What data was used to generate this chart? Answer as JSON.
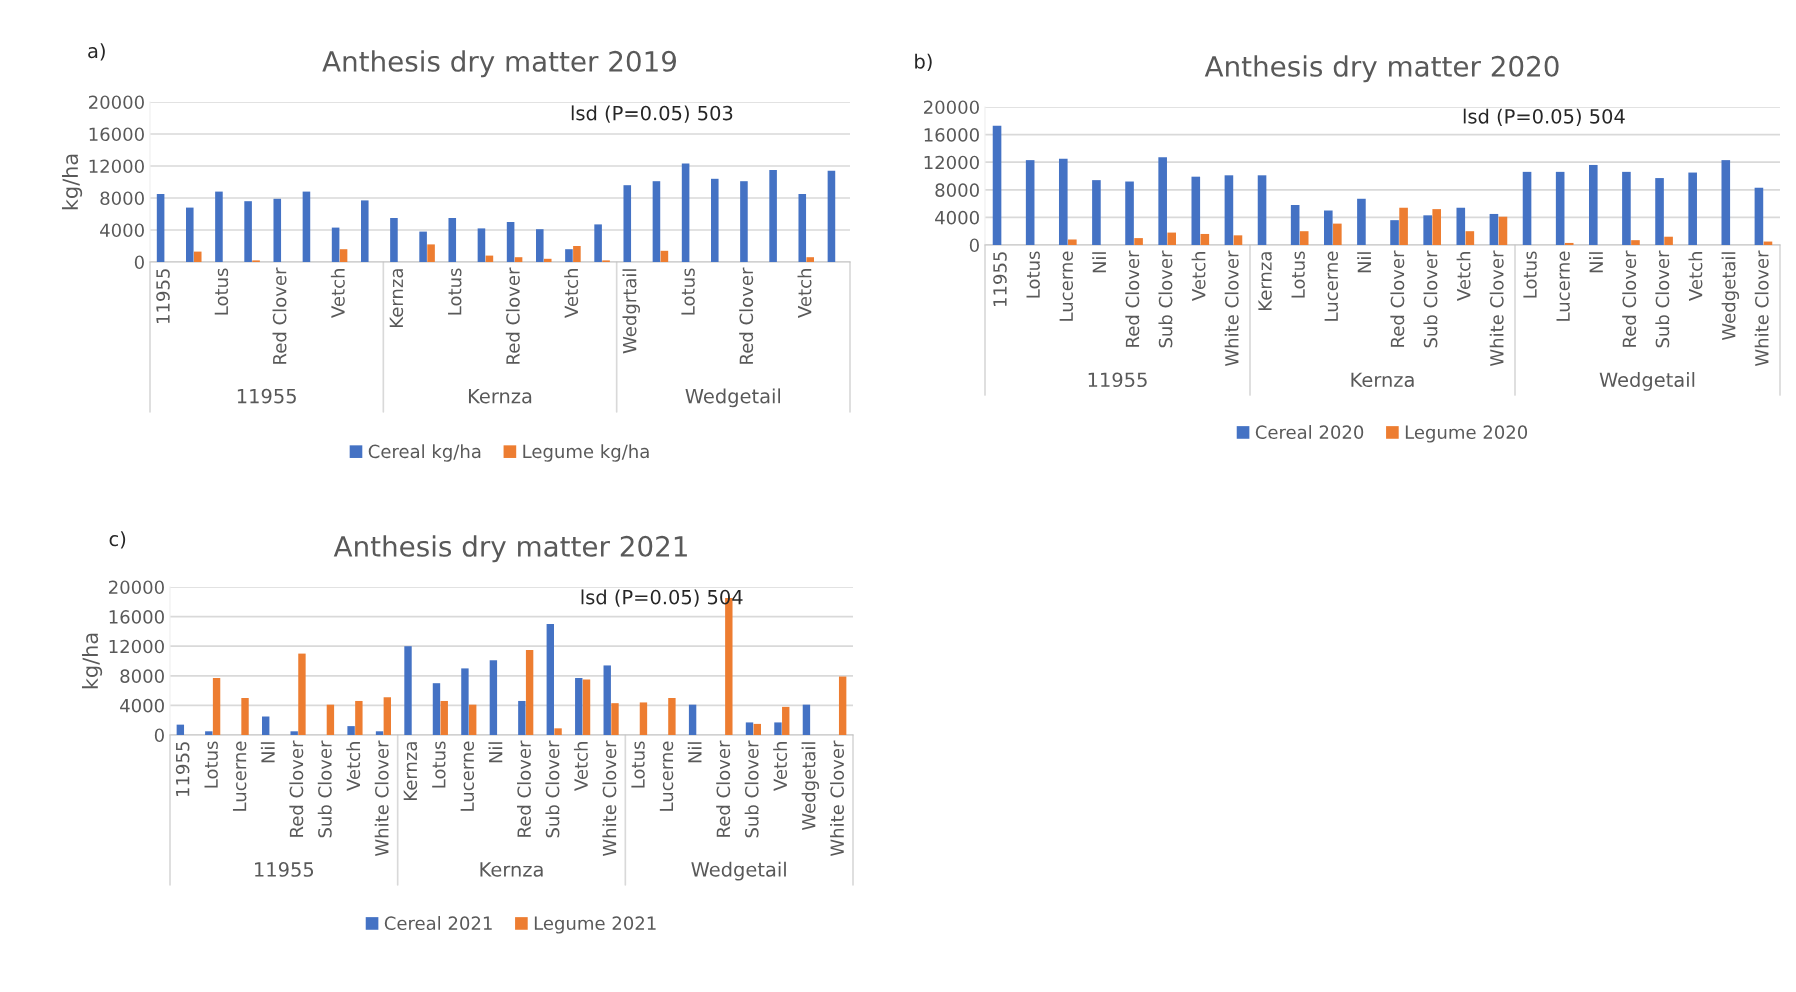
{
  "chart_data": [
    {
      "type": "bar",
      "title": "Anthesis dry matter 2019",
      "ylabel": "kg/ha",
      "categories": [
        "11955",
        null,
        "Lotus",
        null,
        "Red Clover",
        null,
        "Vetch",
        null,
        "Kernza",
        null,
        "Lotus",
        null,
        "Red Clover",
        null,
        "Vetch",
        null,
        "Wedgrtail",
        null,
        "Lotus",
        null,
        "Red Clover",
        null,
        "Vetch",
        null
      ],
      "series": [
        {
          "name": "Cereal kg/ha",
          "color": "#4472c4",
          "values": [
            8500,
            6800,
            8800,
            7600,
            7900,
            8800,
            4300,
            7700,
            5500,
            3800,
            5500,
            4200,
            5000,
            4100,
            1600,
            4700,
            9600,
            10100,
            12300,
            10400,
            10100,
            11500,
            8500,
            11400
          ]
        },
        {
          "name": "Legume kg/ha",
          "color": "#ed7d31",
          "values": [
            null,
            1300,
            null,
            200,
            null,
            null,
            1600,
            null,
            null,
            2200,
            null,
            800,
            600,
            400,
            2000,
            200,
            null,
            1400,
            null,
            null,
            null,
            null,
            600,
            null
          ]
        }
      ],
      "ylim": [
        0,
        20000
      ],
      "yticks": [
        0,
        4000,
        8000,
        12000,
        16000,
        20000
      ],
      "grid": "y",
      "legend": "bottom",
      "annotations": [
        "a)",
        "lsd (P=0.05) 503",
        "11955",
        "Kernza",
        "Wedgetail"
      ]
    },
    {
      "type": "bar",
      "title": "Anthesis dry matter 2020",
      "categories": [
        "11955",
        "Lotus",
        "Lucerne",
        "Nil",
        "Red Clover",
        "Sub Clover",
        "Vetch",
        "White Clover",
        "Kernza",
        "Lotus",
        "Lucerne",
        "Nil",
        "Red Clover",
        "Sub Clover",
        "Vetch",
        "White Clover",
        "Lotus",
        "Lucerne",
        "Nil",
        "Red Clover",
        "Sub Clover",
        "Vetch",
        "Wedgetail",
        "White Clover"
      ],
      "series": [
        {
          "name": "Cereal 2020",
          "color": "#4472c4",
          "values": [
            17300,
            12300,
            12500,
            9400,
            9200,
            12700,
            9900,
            10100,
            10100,
            5800,
            5000,
            6700,
            3600,
            4300,
            5400,
            4500,
            10600,
            10600,
            11600,
            10600,
            9700,
            10500,
            12300,
            8300
          ]
        },
        {
          "name": "Legume 2020",
          "color": "#ed7d31",
          "values": [
            null,
            null,
            800,
            null,
            1000,
            1800,
            1600,
            1400,
            null,
            2000,
            3100,
            null,
            5400,
            5200,
            2000,
            4100,
            null,
            300,
            null,
            700,
            1200,
            null,
            null,
            500
          ]
        }
      ],
      "ylim": [
        0,
        20000
      ],
      "yticks": [
        0,
        4000,
        8000,
        12000,
        16000,
        20000
      ],
      "grid": "y",
      "legend": "bottom",
      "annotations": [
        "b)",
        "lsd (P=0.05) 504",
        "11955",
        "Kernza",
        "Wedgetail"
      ]
    },
    {
      "type": "bar",
      "title": "Anthesis dry matter 2021",
      "ylabel": "kg/ha",
      "categories": [
        "11955",
        "Lotus",
        "Lucerne",
        "Nil",
        "Red Clover",
        "Sub Clover",
        "Vetch",
        "White Clover",
        "Kernza",
        "Lotus",
        "Lucerne",
        "Nil",
        "Red Clover",
        "Sub Clover",
        "Vetch",
        "White Clover",
        "Lotus",
        "Lucerne",
        "Nil",
        "Red Clover",
        "Sub Clover",
        "Vetch",
        "Wedgetail",
        "White Clover"
      ],
      "series": [
        {
          "name": "Cereal 2021",
          "color": "#4472c4",
          "values": [
            1400,
            500,
            null,
            2500,
            500,
            null,
            1200,
            500,
            12000,
            7000,
            9000,
            10100,
            4600,
            15000,
            7700,
            9400,
            null,
            null,
            4100,
            null,
            1700,
            1700,
            4100,
            null
          ]
        },
        {
          "name": "Legume 2021",
          "color": "#ed7d31",
          "values": [
            null,
            7700,
            5000,
            null,
            11000,
            4100,
            4600,
            5100,
            null,
            4600,
            4100,
            null,
            11500,
            900,
            7500,
            4300,
            4400,
            5000,
            null,
            18500,
            1500,
            3800,
            null,
            7900
          ]
        }
      ],
      "ylim": [
        0,
        20000
      ],
      "yticks": [
        0,
        4000,
        8000,
        12000,
        16000,
        20000
      ],
      "grid": "y",
      "legend": "bottom",
      "annotations": [
        "c)",
        "lsd (P=0.05) 504",
        "11955",
        "Kernza",
        "Wedgetail"
      ]
    }
  ]
}
